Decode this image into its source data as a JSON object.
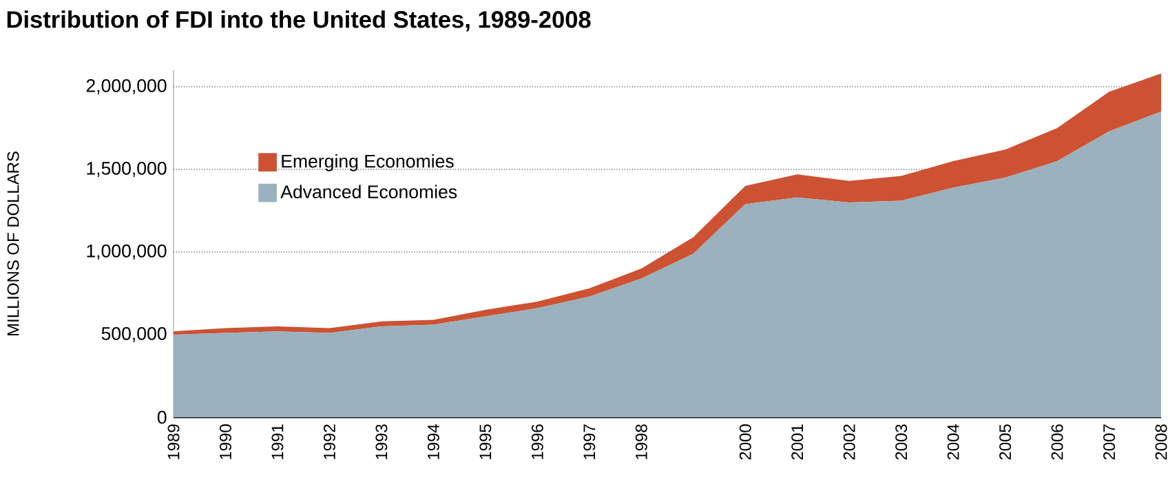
{
  "chart_data": {
    "type": "area",
    "title": "Distribution of FDI into the United States, 1989-2008",
    "ylabel": "MILLIONS OF DOLLARS",
    "categories": [
      "1989",
      "1990",
      "1991",
      "1992",
      "1993",
      "1994",
      "1995",
      "1996",
      "1997",
      "1998",
      null,
      "2000",
      "2001",
      "2002",
      "2003",
      "2004",
      "2005",
      "2006",
      "2007",
      "2008"
    ],
    "stacked": true,
    "series": [
      {
        "name": "Advanced Economies",
        "color": "#9bb1bd",
        "values": [
          500000,
          510000,
          520000,
          510000,
          550000,
          560000,
          610000,
          660000,
          730000,
          840000,
          990000,
          1290000,
          1330000,
          1300000,
          1310000,
          1390000,
          1450000,
          1550000,
          1730000,
          1850000
        ]
      },
      {
        "name": "Emerging Economies",
        "color": "#cc5233",
        "values": [
          20000,
          30000,
          30000,
          30000,
          30000,
          30000,
          40000,
          40000,
          50000,
          60000,
          100000,
          110000,
          140000,
          130000,
          150000,
          160000,
          170000,
          200000,
          240000,
          230000
        ]
      }
    ],
    "ylim": [
      0,
      2100000
    ],
    "yticks": [
      {
        "value": 0,
        "label": "0"
      },
      {
        "value": 500000,
        "label": "500,000"
      },
      {
        "value": 1000000,
        "label": "1,000,000"
      },
      {
        "value": 1500000,
        "label": "1,500,000"
      },
      {
        "value": 2000000,
        "label": "2,000,000"
      }
    ],
    "grid": "y",
    "legend": "top left"
  }
}
